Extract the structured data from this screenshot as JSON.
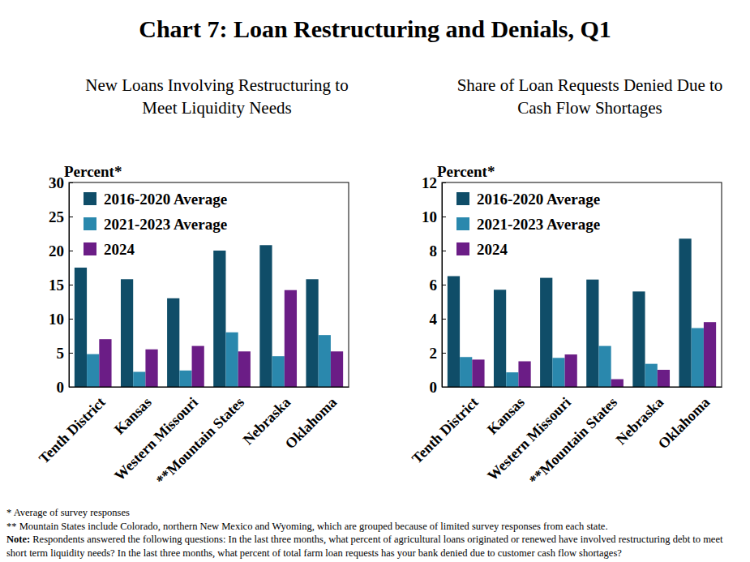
{
  "title": "Chart 7: Loan Restructuring and Denials, Q1",
  "footnotes": [
    "* Average of survey responses",
    "** Mountain States include Colorado, northern New Mexico and Wyoming, which are grouped because of limited survey responses from each state."
  ],
  "note_label": "Note:",
  "note": "Respondents answered the following questions: In the last three months, what percent of agricultural loans originated or renewed have involved restructuring debt to meet short term liquidity needs? In the last three months, what percent of total farm loan requests has your bank denied due to customer cash flow shortages?",
  "chart_data": [
    {
      "type": "bar",
      "title": "New Loans Involving Restructuring to Meet Liquidity Needs",
      "y_label": "Percent*",
      "categories": [
        "Tenth District",
        "Kansas",
        "Western Missouri",
        "**Mountain States",
        "Nebraska",
        "Oklahoma"
      ],
      "series": [
        {
          "name": "2016-2020 Average",
          "color": "#0f4d68",
          "values": [
            17.5,
            15.8,
            13.0,
            20.0,
            20.8,
            15.8
          ]
        },
        {
          "name": "2021-2023 Average",
          "color": "#2a88ad",
          "values": [
            4.8,
            2.2,
            2.4,
            8.0,
            4.5,
            7.6
          ]
        },
        {
          "name": "2024",
          "color": "#6b1d86",
          "values": [
            7.0,
            5.5,
            6.0,
            5.2,
            14.2,
            5.2
          ]
        }
      ],
      "ylim": [
        0,
        30
      ],
      "yticks": [
        0,
        5,
        10,
        15,
        20,
        25,
        30
      ],
      "grid": false,
      "legend": "top-left"
    },
    {
      "type": "bar",
      "title": "Share of Loan Requests Denied Due to Cash Flow Shortages",
      "y_label": "Percent*",
      "categories": [
        "Tenth District",
        "Kansas",
        "Western Missouri",
        "**Mountain States",
        "Nebraska",
        "Oklahoma"
      ],
      "series": [
        {
          "name": "2016-2020 Average",
          "color": "#0f4d68",
          "values": [
            6.5,
            5.7,
            6.4,
            6.3,
            5.6,
            8.7
          ]
        },
        {
          "name": "2021-2023 Average",
          "color": "#2a88ad",
          "values": [
            1.75,
            0.85,
            1.7,
            2.4,
            1.35,
            3.45
          ]
        },
        {
          "name": "2024",
          "color": "#6b1d86",
          "values": [
            1.6,
            1.5,
            1.9,
            0.45,
            1.0,
            3.8
          ]
        }
      ],
      "ylim": [
        0,
        12
      ],
      "yticks": [
        0,
        2,
        4,
        6,
        8,
        10,
        12
      ],
      "grid": false,
      "legend": "top-left"
    }
  ]
}
